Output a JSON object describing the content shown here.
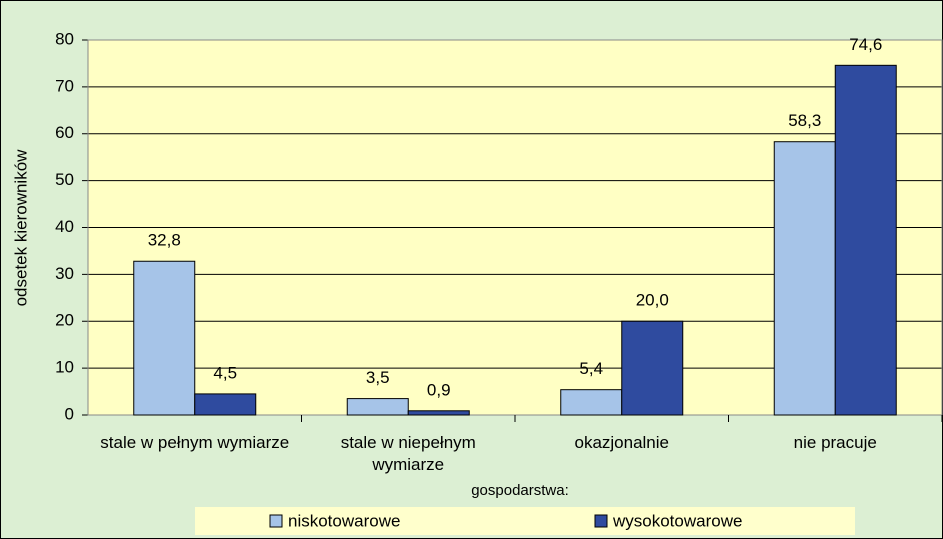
{
  "chart_data": {
    "type": "bar",
    "y_label": "odsetek kierowników",
    "categories": [
      "stale w pełnym wymiarze",
      "stale w niepełnym wymiarze",
      "okazjonalnie",
      "nie pracuje"
    ],
    "series": [
      {
        "name": "niskotowarowe",
        "color": "#a6c4e8",
        "values": [
          32.8,
          3.5,
          5.4,
          58.3
        ],
        "value_labels": [
          "32,8",
          "3,5",
          "5,4",
          "58,3"
        ]
      },
      {
        "name": "wysokotowarowe",
        "color": "#2f4b9f",
        "values": [
          4.5,
          0.9,
          20.0,
          74.6
        ],
        "value_labels": [
          "4,5",
          "0,9",
          "20,0",
          "74,6"
        ]
      }
    ],
    "legend_title": "gospodarstwa:",
    "legend": "bottom",
    "ylim": [
      0,
      80
    ],
    "yticks": [
      0,
      10,
      20,
      30,
      40,
      50,
      60,
      70,
      80
    ],
    "grid": true
  }
}
